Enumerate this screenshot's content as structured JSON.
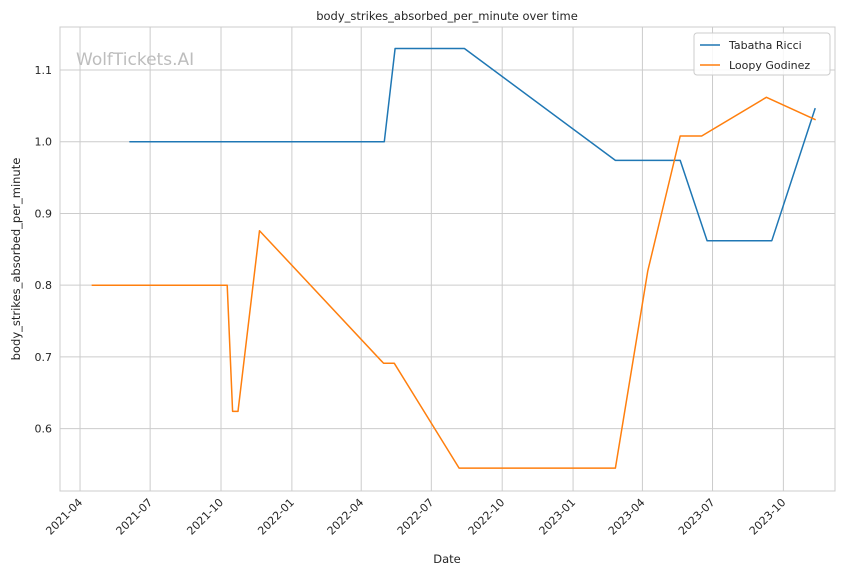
{
  "chart_data": {
    "type": "line",
    "title": "body_strikes_absorbed_per_minute over time",
    "xlabel": "Date",
    "ylabel": "body_strikes_absorbed_per_minute",
    "watermark": "WolfTickets.AI",
    "x_ticks": [
      "2021-04",
      "2021-07",
      "2021-10",
      "2022-01",
      "2022-04",
      "2022-07",
      "2022-10",
      "2023-01",
      "2023-04",
      "2023-07",
      "2023-10"
    ],
    "y_ticks": [
      "0.6",
      "0.7",
      "0.8",
      "0.9",
      "1.0",
      "1.1"
    ],
    "xlim": [
      "2021-03-06",
      "2023-12-07"
    ],
    "ylim": [
      0.513,
      1.16
    ],
    "grid": true,
    "legend_position": "top-right",
    "series": [
      {
        "name": "Tabatha Ricci",
        "color": "#1f77b4",
        "points": [
          [
            "2021-06-05",
            1.0
          ],
          [
            "2022-05-01",
            1.0
          ],
          [
            "2022-05-15",
            1.13
          ],
          [
            "2022-08-13",
            1.13
          ],
          [
            "2023-02-25",
            0.974
          ],
          [
            "2023-05-20",
            0.974
          ],
          [
            "2023-06-24",
            0.862
          ],
          [
            "2023-09-16",
            0.862
          ],
          [
            "2023-11-11",
            1.046
          ]
        ]
      },
      {
        "name": "Loopy Godinez",
        "color": "#ff7f0e",
        "points": [
          [
            "2021-04-17",
            0.8
          ],
          [
            "2021-10-09",
            0.8
          ],
          [
            "2021-10-16",
            0.624
          ],
          [
            "2021-10-23",
            0.624
          ],
          [
            "2021-11-20",
            0.876
          ],
          [
            "2022-04-30",
            0.691
          ],
          [
            "2022-05-14",
            0.691
          ],
          [
            "2022-08-06",
            0.545
          ],
          [
            "2023-02-25",
            0.545
          ],
          [
            "2023-04-08",
            0.82
          ],
          [
            "2023-05-20",
            1.008
          ],
          [
            "2023-06-17",
            1.008
          ],
          [
            "2023-09-09",
            1.062
          ],
          [
            "2023-11-11",
            1.031
          ]
        ]
      }
    ]
  }
}
